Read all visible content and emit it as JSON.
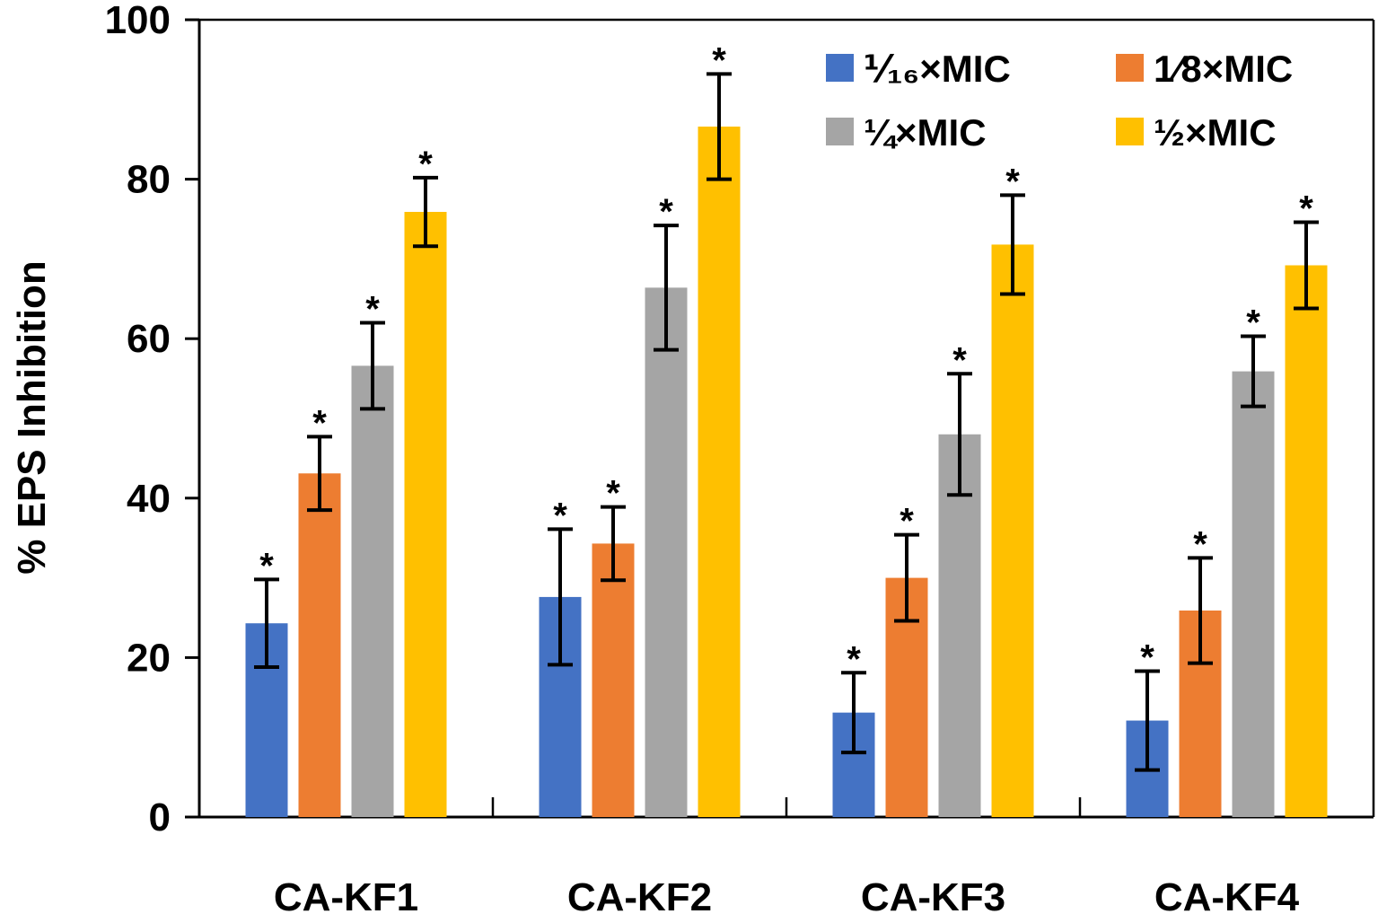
{
  "chart_data": {
    "type": "bar",
    "title": "",
    "xlabel": "",
    "ylabel": "% EPS Inhibition",
    "ylim": [
      0,
      100
    ],
    "yticks": [
      0,
      20,
      40,
      60,
      80,
      100
    ],
    "categories": [
      "CA-KF1",
      "CA-KF2",
      "CA-KF3",
      "CA-KF4"
    ],
    "series": [
      {
        "name": "⅟₁₆×MIC",
        "color": "#4472C4",
        "values": [
          24.3,
          27.6,
          13.1,
          12.1
        ],
        "errors": [
          5.5,
          8.5,
          5.0,
          6.2
        ],
        "significance": [
          "*",
          "*",
          "*",
          "*"
        ]
      },
      {
        "name": "1⁄8×MIC",
        "color": "#ED7D31",
        "values": [
          43.1,
          34.3,
          30.0,
          25.9
        ],
        "errors": [
          4.6,
          4.6,
          5.4,
          6.6
        ],
        "significance": [
          "*",
          "*",
          "*",
          "*"
        ]
      },
      {
        "name": "¼×MIC",
        "color": "#A5A5A5",
        "values": [
          56.6,
          66.4,
          48.0,
          55.9
        ],
        "errors": [
          5.4,
          7.8,
          7.6,
          4.4
        ],
        "significance": [
          "*",
          "*",
          "*",
          "*"
        ]
      },
      {
        "name": "½×MIC",
        "color": "#FFC000",
        "values": [
          75.9,
          86.6,
          71.8,
          69.2
        ],
        "errors": [
          4.3,
          6.6,
          6.2,
          5.4
        ],
        "significance": [
          "*",
          "*",
          "*",
          "*"
        ]
      }
    ],
    "legend_position": "top-right",
    "grid": false
  }
}
